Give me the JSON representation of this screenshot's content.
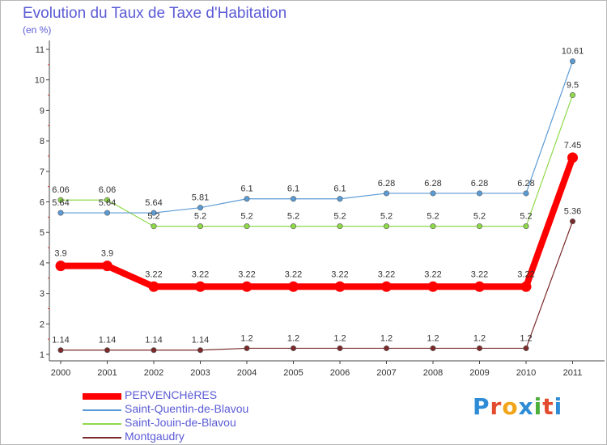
{
  "title": "Evolution du Taux de Taxe d'Habitation",
  "subtitle": "(en %)",
  "logo_text": "Proxiti",
  "chart_data": {
    "type": "line",
    "categories": [
      "2000",
      "2001",
      "2002",
      "2003",
      "2004",
      "2005",
      "2006",
      "2007",
      "2008",
      "2009",
      "2010",
      "2011"
    ],
    "ylim": [
      1,
      11
    ],
    "yticks": [
      1,
      2,
      3,
      4,
      5,
      6,
      7,
      8,
      9,
      10,
      11
    ],
    "grid": false,
    "legend_position": "bottom-left",
    "series": [
      {
        "name": "PERVENCHèRES",
        "color": "#ff0000",
        "values": [
          3.9,
          3.9,
          3.22,
          3.22,
          3.22,
          3.22,
          3.22,
          3.22,
          3.22,
          3.22,
          3.22,
          7.45
        ],
        "labels": [
          "3.9",
          "3.9",
          "3.22",
          "3.22",
          "3.22",
          "3.22",
          "3.22",
          "3.22",
          "3.22",
          "3.22",
          "3.22",
          "7.45"
        ]
      },
      {
        "name": "Saint-Quentin-de-Blavou",
        "color": "#5b9bd5",
        "values": [
          5.64,
          5.64,
          5.64,
          5.81,
          6.1,
          6.1,
          6.1,
          6.28,
          6.28,
          6.28,
          6.28,
          10.61
        ],
        "labels": [
          "5.64",
          "5.64",
          "5.64",
          "5.81",
          "6.1",
          "6.1",
          "6.1",
          "6.28",
          "6.28",
          "6.28",
          "6.28",
          "10.61"
        ]
      },
      {
        "name": "Saint-Jouin-de-Blavou",
        "color": "#8fd94a",
        "values": [
          6.06,
          6.06,
          5.2,
          5.2,
          5.2,
          5.2,
          5.2,
          5.2,
          5.2,
          5.2,
          5.2,
          9.5
        ],
        "labels": [
          "6.06",
          "6.06",
          "5.2",
          "5.2",
          "5.2",
          "5.2",
          "5.2",
          "5.2",
          "5.2",
          "5.2",
          "5.2",
          "9.5"
        ]
      },
      {
        "name": "Montgaudry",
        "color": "#7a2a2a",
        "values": [
          1.14,
          1.14,
          1.14,
          1.14,
          1.2,
          1.2,
          1.2,
          1.2,
          1.2,
          1.2,
          1.2,
          5.36
        ],
        "labels": [
          "1.14",
          "1.14",
          "1.14",
          "1.14",
          "1.2",
          "1.2",
          "1.2",
          "1.2",
          "1.2",
          "1.2",
          "1.2",
          "5.36"
        ]
      }
    ]
  }
}
